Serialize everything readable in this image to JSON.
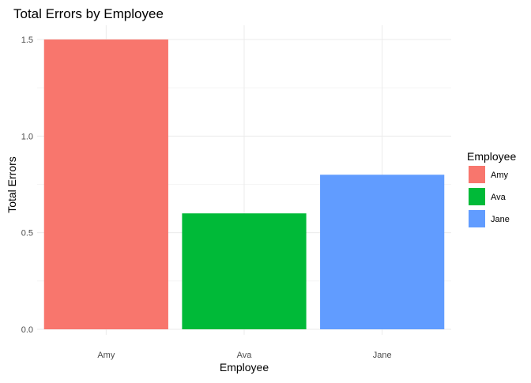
{
  "chart_data": {
    "type": "bar",
    "title": "Total Errors by Employee",
    "xlabel": "Employee",
    "ylabel": "Total Errors",
    "categories": [
      "Amy",
      "Ava",
      "Jane"
    ],
    "values": [
      1.5,
      0.6,
      0.8
    ],
    "colors": [
      "#F8766D",
      "#00BA38",
      "#619CFF"
    ],
    "ylim": [
      0,
      1.57
    ],
    "yticks": [
      0,
      0.5,
      1,
      1.5
    ],
    "ytick_labels": [
      "0.0",
      "0.5",
      "1.0",
      "1.5"
    ],
    "grid": true,
    "legend": {
      "title": "Employee",
      "placement": "right",
      "entries": [
        "Amy",
        "Ava",
        "Jane"
      ]
    }
  }
}
